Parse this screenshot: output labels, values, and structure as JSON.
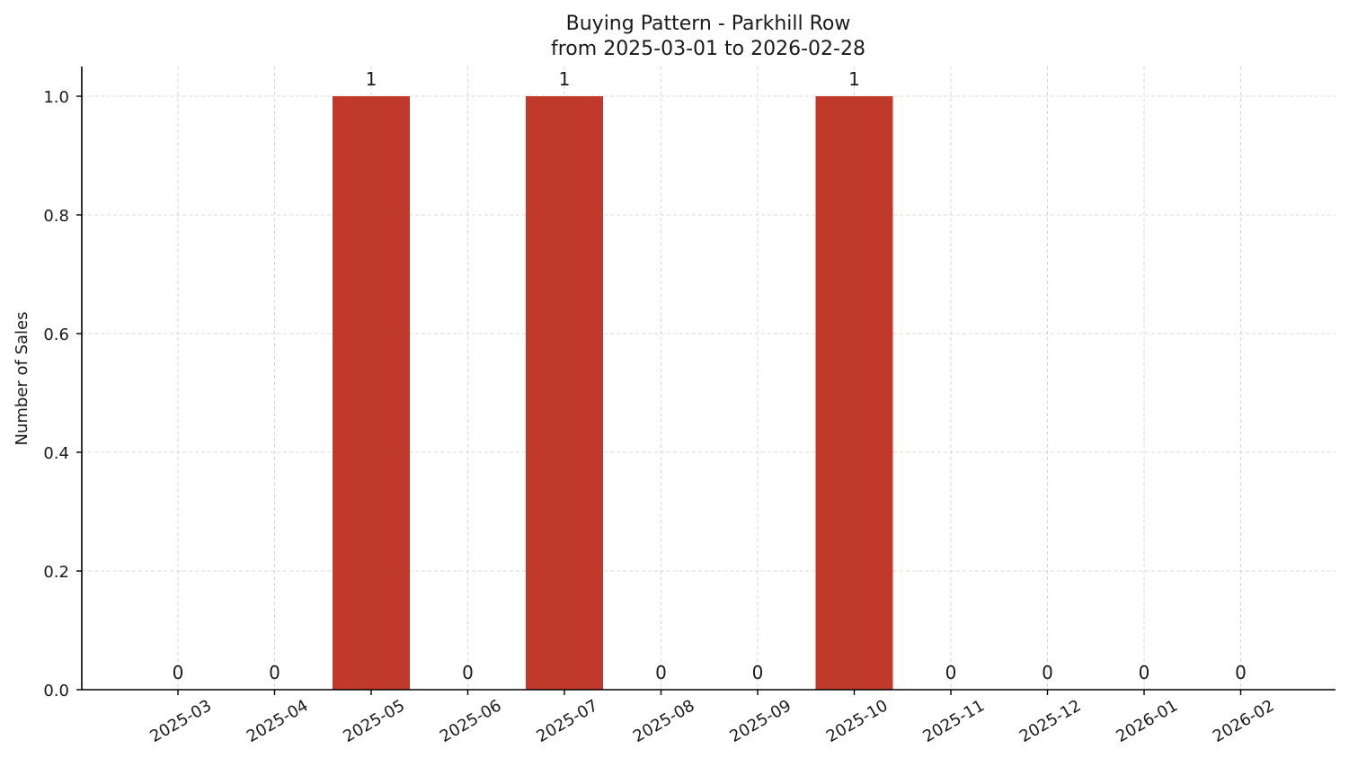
{
  "chart_data": {
    "type": "bar",
    "title": "Buying Pattern - Parkhill Row",
    "subtitle": "from 2025-03-01 to 2026-02-28",
    "xlabel": "",
    "ylabel": "Number of Sales",
    "categories": [
      "2025-03",
      "2025-04",
      "2025-05",
      "2025-06",
      "2025-07",
      "2025-08",
      "2025-09",
      "2025-10",
      "2025-11",
      "2025-12",
      "2026-01",
      "2026-02"
    ],
    "values": [
      0,
      0,
      1,
      0,
      1,
      0,
      0,
      1,
      0,
      0,
      0,
      0
    ],
    "data_labels": [
      "0",
      "0",
      "1",
      "0",
      "1",
      "0",
      "0",
      "1",
      "0",
      "0",
      "0",
      "0"
    ],
    "ylim": [
      0,
      1.05
    ],
    "yticks": [
      "0.0",
      "0.2",
      "0.4",
      "0.6",
      "0.8",
      "1.0"
    ],
    "bar_color": "#c0392b",
    "grid": true
  }
}
